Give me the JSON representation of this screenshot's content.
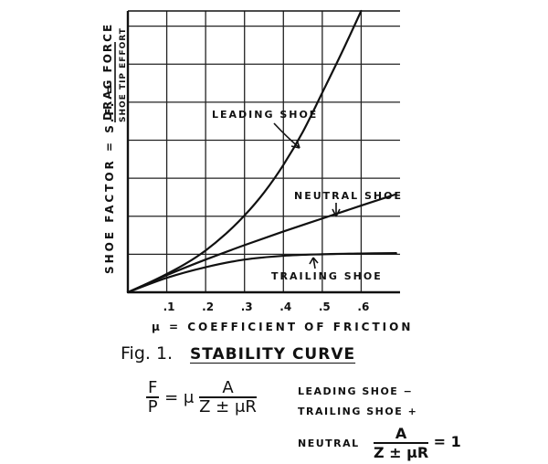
{
  "chart_data": {
    "type": "line",
    "title": "",
    "xlabel": "μ = COEFFICIENT OF FRICTION",
    "ylabel_main": "SHOE FACTOR = ",
    "ylabel_symbol": "S.F. = ",
    "ylabel_fraction_top": "DRAG FORCE",
    "ylabel_fraction_bottom": "SHOE TIP EFFORT",
    "x_ticks": [
      ".1",
      ".2",
      ".3",
      ".4",
      ".5",
      ".6"
    ],
    "x_tick_values": [
      0.1,
      0.2,
      0.3,
      0.4,
      0.5,
      0.6
    ],
    "xlim": [
      0,
      0.7
    ],
    "ylim": [
      0,
      7.4
    ],
    "grid": true,
    "series": [
      {
        "name": "LEADING SHOE",
        "x": [
          0,
          0.05,
          0.1,
          0.15,
          0.2,
          0.25,
          0.3,
          0.35,
          0.4,
          0.45,
          0.5,
          0.55,
          0.6
        ],
        "values": [
          0,
          0.23,
          0.48,
          0.76,
          1.1,
          1.52,
          2.02,
          2.62,
          3.35,
          4.22,
          5.25,
          6.3,
          7.4
        ]
      },
      {
        "name": "NEUTRAL SHOE",
        "x": [
          0,
          0.1,
          0.2,
          0.3,
          0.4,
          0.5,
          0.6,
          0.69
        ],
        "values": [
          0,
          0.45,
          0.86,
          1.24,
          1.6,
          1.94,
          2.28,
          2.58
        ]
      },
      {
        "name": "TRAILING SHOE",
        "x": [
          0,
          0.1,
          0.2,
          0.3,
          0.4,
          0.5,
          0.6,
          0.69
        ],
        "values": [
          0,
          0.38,
          0.66,
          0.86,
          0.96,
          1.0,
          1.02,
          1.03
        ]
      }
    ]
  },
  "caption": {
    "fig_label": "Fig. 1.",
    "title": "STABILITY CURVE",
    "formula_lhs_num": "F",
    "formula_lhs_den": "P",
    "formula_mid": "= μ",
    "formula_rhs_num": "A",
    "formula_rhs_den": "Z ± μR",
    "leading_note": "LEADING SHOE  −",
    "trailing_note": "TRAILING SHOE  +",
    "neutral_label": "NEUTRAL",
    "neutral_num": "A",
    "neutral_den": "Z ± μR",
    "neutral_eq": "= 1"
  }
}
